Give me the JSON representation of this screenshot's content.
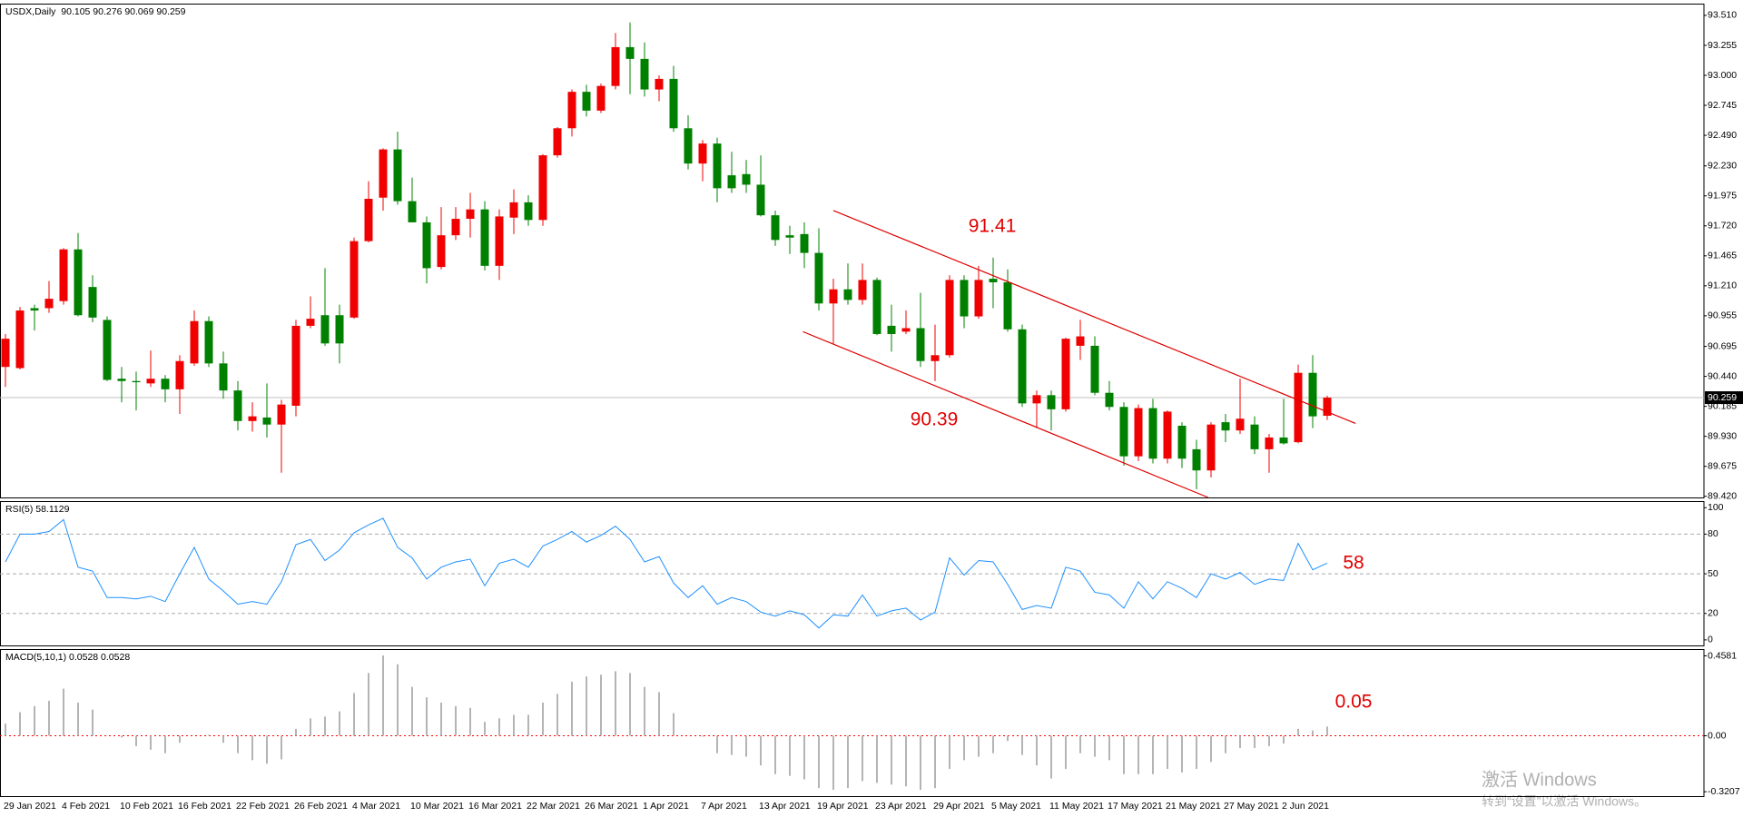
{
  "chart_data": [
    {
      "type": "candlestick",
      "title": "USDX,Daily  90.105 90.276 90.069 90.259",
      "categories": [
        "29 Jan 2021",
        null,
        null,
        null,
        "4 Feb 2021",
        null,
        null,
        null,
        "10 Feb 2021",
        null,
        null,
        null,
        "16 Feb 2021",
        null,
        null,
        null,
        "22 Feb 2021",
        null,
        null,
        null,
        "26 Feb 2021",
        null,
        null,
        null,
        "4 Mar 2021",
        null,
        null,
        null,
        "10 Mar 2021",
        null,
        null,
        null,
        "16 Mar 2021",
        null,
        null,
        null,
        "22 Mar 2021",
        null,
        null,
        null,
        "26 Mar 2021",
        null,
        null,
        null,
        "1 Apr 2021",
        null,
        null,
        null,
        "7 Apr 2021",
        null,
        null,
        null,
        "13 Apr 2021",
        null,
        null,
        null,
        "19 Apr 2021",
        null,
        null,
        null,
        "23 Apr 2021",
        null,
        null,
        null,
        "29 Apr 2021",
        null,
        null,
        null,
        "5 May 2021",
        null,
        null,
        null,
        "11 May 2021",
        null,
        null,
        null,
        "17 May 2021",
        null,
        null,
        null,
        "21 May 2021",
        null,
        null,
        null,
        "27 May 2021",
        null,
        null,
        null,
        "2 Jun 2021",
        null,
        null,
        null
      ],
      "open": [
        90.52,
        90.51,
        91.02,
        91.02,
        91.08,
        91.52,
        91.2,
        90.92,
        90.42,
        90.4,
        90.38,
        90.42,
        90.33,
        90.55,
        90.91,
        90.55,
        90.32,
        90.06,
        90.09,
        90.03,
        90.19,
        90.87,
        90.96,
        90.96,
        90.94,
        91.59,
        91.96,
        92.37,
        91.93,
        91.75,
        91.37,
        91.64,
        91.78,
        91.86,
        91.38,
        91.79,
        91.92,
        91.77,
        92.32,
        92.55,
        92.86,
        92.7,
        92.91,
        93.24,
        93.14,
        92.88,
        92.97,
        92.55,
        92.25,
        92.42,
        92.15,
        92.16,
        92.07,
        91.81,
        91.64,
        91.65,
        91.49,
        91.06,
        91.18,
        91.09,
        91.26,
        90.87,
        90.82,
        90.85,
        90.57,
        90.62,
        91.26,
        90.95,
        91.27,
        91.24,
        90.84,
        90.21,
        90.28,
        90.16,
        90.7,
        90.7,
        90.3,
        90.18,
        89.76,
        90.17,
        89.74,
        90.02,
        89.82,
        89.64,
        90.05,
        89.98,
        90.03,
        89.82,
        89.92,
        89.88,
        90.47,
        90.105
      ],
      "high": [
        90.8,
        91.03,
        91.05,
        91.25,
        91.53,
        91.66,
        91.3,
        90.95,
        90.52,
        90.48,
        90.66,
        90.45,
        90.62,
        91.0,
        90.95,
        90.65,
        90.4,
        90.22,
        90.38,
        90.24,
        90.92,
        91.12,
        91.36,
        91.05,
        91.62,
        92.1,
        92.38,
        92.52,
        92.13,
        91.8,
        91.88,
        91.88,
        92.0,
        91.93,
        91.86,
        92.03,
        91.98,
        92.33,
        92.56,
        92.88,
        92.92,
        92.93,
        93.36,
        93.45,
        93.28,
        93.0,
        93.08,
        92.66,
        92.45,
        92.47,
        92.35,
        92.28,
        92.32,
        91.85,
        91.72,
        91.75,
        91.7,
        91.27,
        91.4,
        91.4,
        91.28,
        91.05,
        91.0,
        91.15,
        90.88,
        91.3,
        91.3,
        91.38,
        91.45,
        91.35,
        90.88,
        90.32,
        90.32,
        90.77,
        90.92,
        90.78,
        90.4,
        90.22,
        90.2,
        90.25,
        90.15,
        90.05,
        89.9,
        90.05,
        90.12,
        90.42,
        90.1,
        89.95,
        90.25,
        90.54,
        90.62,
        90.276
      ],
      "low": [
        90.35,
        90.5,
        90.83,
        90.98,
        91.05,
        90.95,
        90.9,
        90.4,
        90.22,
        90.15,
        90.35,
        90.22,
        90.12,
        90.53,
        90.52,
        90.25,
        89.98,
        89.97,
        89.92,
        89.62,
        90.1,
        90.85,
        90.7,
        90.55,
        90.93,
        91.58,
        91.85,
        91.9,
        91.75,
        91.23,
        91.35,
        91.6,
        91.62,
        91.34,
        91.26,
        91.65,
        91.72,
        91.72,
        92.3,
        92.48,
        92.65,
        92.68,
        92.88,
        92.84,
        92.82,
        92.78,
        92.52,
        92.2,
        92.1,
        91.92,
        92.0,
        92.0,
        91.8,
        91.55,
        91.48,
        91.36,
        91.0,
        90.72,
        91.05,
        91.05,
        90.79,
        90.65,
        90.8,
        90.52,
        90.4,
        90.6,
        90.85,
        90.93,
        91.02,
        90.82,
        90.18,
        90.0,
        89.98,
        90.14,
        90.58,
        90.28,
        90.15,
        89.68,
        89.72,
        89.7,
        89.7,
        89.66,
        89.48,
        89.58,
        89.88,
        89.95,
        89.78,
        89.62,
        89.86,
        89.87,
        90.0,
        90.069
      ],
      "close": [
        90.76,
        91.0,
        91.0,
        91.1,
        91.52,
        90.96,
        90.94,
        90.41,
        90.4,
        90.39,
        90.42,
        90.33,
        90.57,
        90.91,
        90.55,
        90.32,
        90.06,
        90.1,
        90.03,
        90.2,
        90.87,
        90.93,
        90.72,
        90.72,
        91.59,
        91.95,
        92.37,
        91.93,
        91.75,
        91.36,
        91.64,
        91.78,
        91.86,
        91.38,
        91.8,
        91.92,
        91.77,
        92.32,
        92.55,
        92.86,
        92.7,
        92.91,
        93.24,
        93.14,
        92.88,
        92.97,
        92.55,
        92.25,
        92.42,
        92.04,
        92.04,
        92.07,
        91.81,
        91.6,
        91.62,
        91.49,
        91.06,
        91.18,
        91.09,
        91.26,
        90.8,
        90.8,
        90.85,
        90.57,
        90.62,
        91.26,
        90.95,
        91.26,
        91.24,
        90.84,
        90.21,
        90.28,
        90.16,
        90.76,
        90.78,
        90.3,
        90.18,
        89.76,
        90.17,
        89.74,
        90.14,
        89.74,
        89.64,
        90.03,
        89.98,
        90.08,
        89.82,
        89.92,
        89.87,
        90.47,
        90.1,
        90.259
      ],
      "up_color": "#f00000",
      "down_color": "#008000",
      "ylim": [
        89.41,
        93.61
      ],
      "yticks": [
        {
          "value": 93.51,
          "label": "93.510"
        },
        93.255,
        {
          "value": 93,
          "label": "93.000"
        },
        92.745,
        {
          "value": 92.49,
          "label": "92.490"
        },
        {
          "value": 92.23,
          "label": "92.230"
        },
        91.975,
        {
          "value": 91.72,
          "label": "91.720"
        },
        91.465,
        {
          "value": 91.21,
          "label": "91.210"
        },
        90.955,
        90.695,
        {
          "value": 90.44,
          "label": "90.440"
        },
        90.185,
        {
          "value": 89.93,
          "label": "89.930"
        },
        89.675,
        {
          "value": 89.42,
          "label": "89.420"
        }
      ],
      "last_price": {
        "value": 90.259,
        "label": "90.259"
      },
      "trendlines": [
        {
          "x": [
            57.0,
            92.95
          ],
          "y": [
            91.85,
            90.04
          ]
        },
        {
          "x": [
            54.9,
            82.8
          ],
          "y": [
            90.82,
            89.41
          ]
        }
      ],
      "trendline_color": "#e00000",
      "annotations": [
        "91.41",
        "90.39"
      ],
      "annotation_color": "#e00000"
    },
    {
      "type": "line",
      "title": "RSI(5) 58.1129",
      "color": "#1e90ff",
      "values": [
        59,
        80,
        80,
        82,
        91,
        55,
        52,
        32,
        32,
        31,
        33,
        29,
        50,
        70,
        46,
        37,
        27,
        29,
        27,
        44,
        72,
        76,
        60,
        68,
        81,
        87,
        92,
        70,
        62,
        46,
        55,
        59,
        61,
        41,
        58,
        61,
        55,
        71,
        76,
        82,
        74,
        79,
        86,
        76,
        59,
        63,
        43,
        32,
        41,
        27,
        32,
        29,
        21,
        18,
        22,
        19,
        9,
        19,
        18,
        34,
        18,
        22,
        24,
        15,
        21,
        62,
        49,
        60,
        59,
        42,
        23,
        26,
        24,
        55,
        52,
        36,
        34,
        24,
        44,
        31,
        44,
        39,
        32,
        50,
        46,
        51,
        42,
        46,
        45,
        73,
        53,
        58.1129
      ],
      "ylim": [
        -4.2,
        105
      ],
      "yticks": [
        100,
        80,
        50,
        20,
        0
      ],
      "grid": "dashed",
      "annotations": [
        "58"
      ],
      "annotation_color": "#e00000"
    },
    {
      "type": "bar",
      "title": "MACD(5,10,1) 0.0528 0.0528",
      "color": "#b4b4b4",
      "values": [
        0.07,
        0.135,
        0.17,
        0.2,
        0.27,
        0.19,
        0.15,
        0.0,
        -0.01,
        -0.06,
        -0.08,
        -0.1,
        -0.04,
        0.0,
        0.005,
        -0.04,
        -0.1,
        -0.14,
        -0.16,
        -0.135,
        0.04,
        0.1,
        0.11,
        0.14,
        0.245,
        0.36,
        0.46,
        0.41,
        0.28,
        0.22,
        0.19,
        0.17,
        0.16,
        0.08,
        0.1,
        0.12,
        0.12,
        0.19,
        0.24,
        0.31,
        0.34,
        0.35,
        0.37,
        0.36,
        0.28,
        0.25,
        0.13,
        0.0,
        -0.005,
        -0.1,
        -0.11,
        -0.12,
        -0.17,
        -0.22,
        -0.23,
        -0.25,
        -0.3,
        -0.31,
        -0.3,
        -0.26,
        -0.27,
        -0.28,
        -0.29,
        -0.31,
        -0.3,
        -0.19,
        -0.14,
        -0.12,
        -0.1,
        -0.03,
        -0.11,
        -0.17,
        -0.245,
        -0.19,
        -0.1,
        -0.12,
        -0.14,
        -0.22,
        -0.22,
        -0.22,
        -0.19,
        -0.21,
        -0.19,
        -0.15,
        -0.1,
        -0.07,
        -0.07,
        -0.06,
        -0.045,
        0.04,
        0.03,
        0.0528
      ],
      "ylim": [
        -0.346,
        0.497
      ],
      "yticks": [
        0.4581,
        {
          "value": 0,
          "label": "0.00"
        },
        -0.3207
      ],
      "zero_line_color": "#ff0000",
      "annotations": [
        "0.05"
      ],
      "annotation_color": "#e00000"
    }
  ],
  "watermark": {
    "title": "激活 Windows",
    "subtitle": "转到“设置”以激活 Windows。"
  }
}
